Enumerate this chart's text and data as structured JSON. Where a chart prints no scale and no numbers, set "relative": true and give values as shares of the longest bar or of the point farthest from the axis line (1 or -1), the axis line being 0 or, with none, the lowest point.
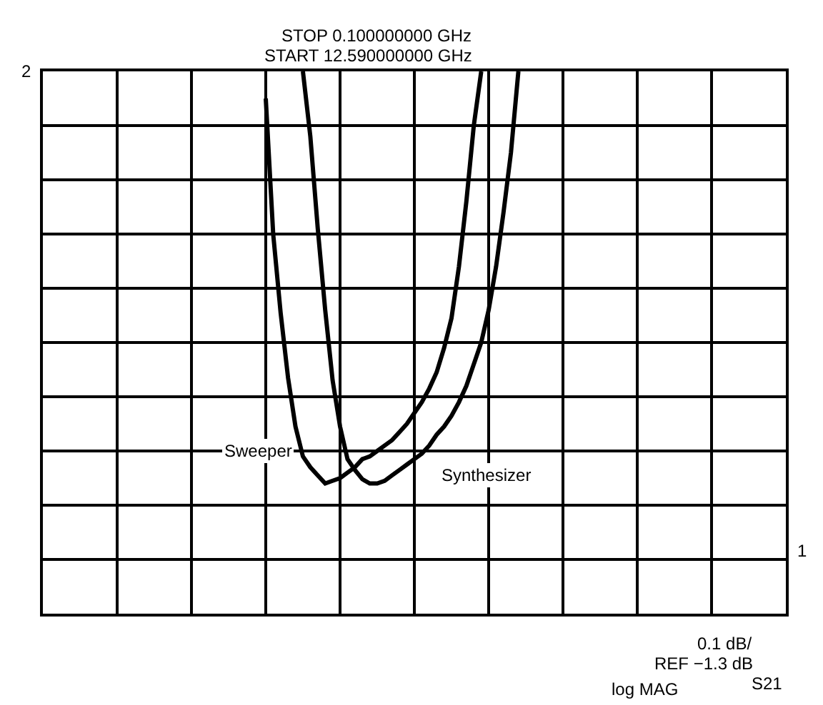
{
  "chart_data": {
    "type": "line",
    "relative": true,
    "grid": true,
    "legend": false,
    "marker": "none",
    "line_style": "solid",
    "categories": [
      null,
      null,
      null,
      null,
      null,
      null,
      null,
      null,
      null,
      null,
      null,
      null,
      null,
      null,
      null,
      null,
      null,
      null,
      null,
      null,
      null,
      null,
      null,
      null,
      null,
      null,
      null,
      null,
      null,
      null,
      null,
      null,
      null,
      null,
      null,
      null,
      null,
      null,
      null,
      null,
      null,
      null,
      null,
      null,
      null,
      null,
      null,
      null,
      null,
      null,
      null,
      null,
      null,
      null,
      null,
      null,
      null,
      null,
      null,
      null,
      null,
      null,
      null,
      null,
      null,
      null,
      null,
      null,
      null,
      null,
      null,
      null,
      null,
      null,
      null,
      null,
      null,
      null,
      null,
      null,
      null,
      null,
      null,
      null,
      null,
      null,
      null,
      null,
      null,
      null,
      null,
      null,
      null,
      null,
      null,
      null,
      null,
      null,
      null,
      null,
      null
    ],
    "series": [
      {
        "name": "Sweeper",
        "color": "#000000",
        "values": [
          null,
          null,
          null,
          null,
          null,
          null,
          null,
          null,
          null,
          null,
          null,
          null,
          null,
          null,
          null,
          null,
          null,
          null,
          null,
          null,
          null,
          null,
          null,
          null,
          null,
          null,
          null,
          null,
          null,
          null,
          0.95,
          0.7,
          0.555,
          0.435,
          0.345,
          0.29,
          0.27,
          0.255,
          0.24,
          0.245,
          0.25,
          0.26,
          0.27,
          0.285,
          0.29,
          0.3,
          0.31,
          0.32,
          0.335,
          0.35,
          0.37,
          0.39,
          0.415,
          0.445,
          0.49,
          0.545,
          0.64,
          0.76,
          0.9,
          1.0,
          null,
          null,
          null,
          null,
          null,
          null,
          null,
          null,
          null,
          null,
          null,
          null,
          null,
          null,
          null,
          null,
          null,
          null,
          null,
          null,
          null,
          null,
          null,
          null,
          null,
          null,
          null,
          null,
          null,
          null,
          null,
          null,
          null,
          null,
          null,
          null,
          null,
          null,
          null,
          null,
          null
        ]
      },
      {
        "name": "Synthesizer",
        "color": "#000000",
        "values": [
          null,
          null,
          null,
          null,
          null,
          null,
          null,
          null,
          null,
          null,
          null,
          null,
          null,
          null,
          null,
          null,
          null,
          null,
          null,
          null,
          null,
          null,
          null,
          null,
          null,
          null,
          null,
          null,
          null,
          null,
          null,
          null,
          null,
          null,
          null,
          1.0,
          0.88,
          0.71,
          0.56,
          0.43,
          0.345,
          0.285,
          0.265,
          0.248,
          0.24,
          0.24,
          0.245,
          0.255,
          0.265,
          0.275,
          0.285,
          0.295,
          0.31,
          0.33,
          0.345,
          0.365,
          0.39,
          0.42,
          0.46,
          0.5,
          0.56,
          0.64,
          0.74,
          0.85,
          1.0,
          null,
          null,
          null,
          null,
          null,
          null,
          null,
          null,
          null,
          null,
          null,
          null,
          null,
          null,
          null,
          null,
          null,
          null,
          null,
          null,
          null,
          null,
          null,
          null,
          null,
          null,
          null,
          null,
          null,
          null,
          null,
          null,
          null,
          null,
          null,
          null
        ]
      }
    ],
    "annotations": [
      "STOP 0.100000000 GHz",
      "START 12.590000000 GHz",
      "2",
      "1",
      "0.1 dB/",
      "REF −1.3 dB",
      "S21",
      "log MAG"
    ]
  }
}
